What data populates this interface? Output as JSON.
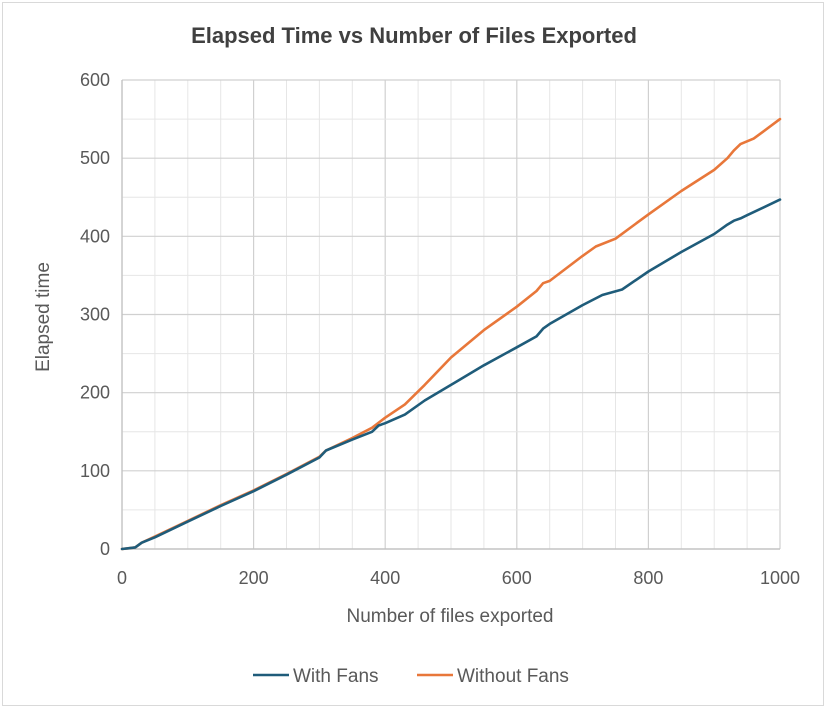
{
  "chart_data": {
    "type": "line",
    "title": "Elapsed Time vs Number of Files Exported",
    "xlabel": "Number of files exported",
    "ylabel": "Elapsed time",
    "xlim": [
      0,
      1000
    ],
    "ylim": [
      0,
      600
    ],
    "x_ticks": [
      "0",
      "200",
      "400",
      "600",
      "800",
      "1000"
    ],
    "y_ticks": [
      "0",
      "100",
      "200",
      "300",
      "400",
      "500",
      "600"
    ],
    "x_tick_values": [
      0,
      200,
      400,
      600,
      800,
      1000
    ],
    "y_tick_values": [
      0,
      100,
      200,
      300,
      400,
      500,
      600
    ],
    "x_minor_step": 50,
    "y_minor_step": 50,
    "grid": true,
    "legend_position": "bottom",
    "series": [
      {
        "name": "With Fans",
        "color": "#1f5c7a",
        "x": [
          0,
          20,
          30,
          50,
          100,
          150,
          200,
          250,
          300,
          310,
          350,
          380,
          390,
          400,
          430,
          460,
          500,
          550,
          600,
          630,
          640,
          650,
          700,
          730,
          760,
          800,
          850,
          900,
          920,
          930,
          940,
          950,
          1000
        ],
        "y": [
          0,
          2,
          8,
          15,
          35,
          55,
          74,
          95,
          117,
          126,
          140,
          150,
          158,
          161,
          172,
          190,
          210,
          235,
          258,
          272,
          282,
          288,
          312,
          325,
          332,
          355,
          380,
          403,
          415,
          420,
          423,
          427,
          447
        ]
      },
      {
        "name": "Without Fans",
        "color": "#e8773a",
        "x": [
          0,
          20,
          30,
          50,
          100,
          150,
          200,
          250,
          300,
          310,
          350,
          380,
          400,
          430,
          460,
          500,
          550,
          600,
          630,
          640,
          650,
          700,
          720,
          750,
          800,
          850,
          900,
          920,
          930,
          940,
          960,
          1000
        ],
        "y": [
          0,
          2,
          8,
          16,
          36,
          56,
          75,
          96,
          118,
          126,
          142,
          155,
          168,
          185,
          210,
          245,
          280,
          310,
          330,
          340,
          343,
          375,
          387,
          397,
          428,
          458,
          485,
          500,
          510,
          518,
          525,
          550
        ]
      }
    ]
  }
}
